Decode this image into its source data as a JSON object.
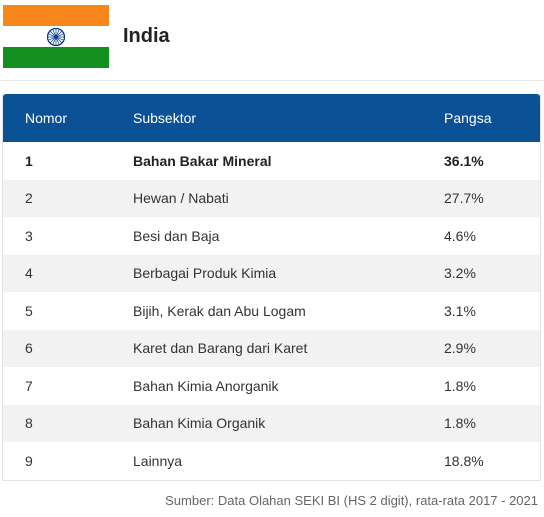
{
  "header": {
    "country": "India",
    "flag_colors": {
      "saffron": "#f7861b",
      "white": "#ffffff",
      "green": "#139020",
      "chakra": "#0a3a8c"
    }
  },
  "table": {
    "columns": [
      "Nomor",
      "Subsektor",
      "Pangsa"
    ],
    "header_color": "#0a5196",
    "rows": [
      {
        "no": "1",
        "subsektor": "Bahan Bakar Mineral",
        "pangsa": "36.1%"
      },
      {
        "no": "2",
        "subsektor": "Hewan / Nabati",
        "pangsa": "27.7%"
      },
      {
        "no": "3",
        "subsektor": "Besi dan Baja",
        "pangsa": "4.6%"
      },
      {
        "no": "4",
        "subsektor": "Berbagai Produk Kimia",
        "pangsa": "3.2%"
      },
      {
        "no": "5",
        "subsektor": "Bijih, Kerak dan Abu Logam",
        "pangsa": "3.1%"
      },
      {
        "no": "6",
        "subsektor": "Karet dan Barang dari Karet",
        "pangsa": "2.9%"
      },
      {
        "no": "7",
        "subsektor": "Bahan Kimia Anorganik",
        "pangsa": "1.8%"
      },
      {
        "no": "8",
        "subsektor": "Bahan Kimia Organik",
        "pangsa": "1.8%"
      },
      {
        "no": "9",
        "subsektor": "Lainnya",
        "pangsa": "18.8%"
      }
    ]
  },
  "source": "Sumber: Data Olahan SEKI BI (HS 2 digit), rata-rata 2017 - 2021"
}
